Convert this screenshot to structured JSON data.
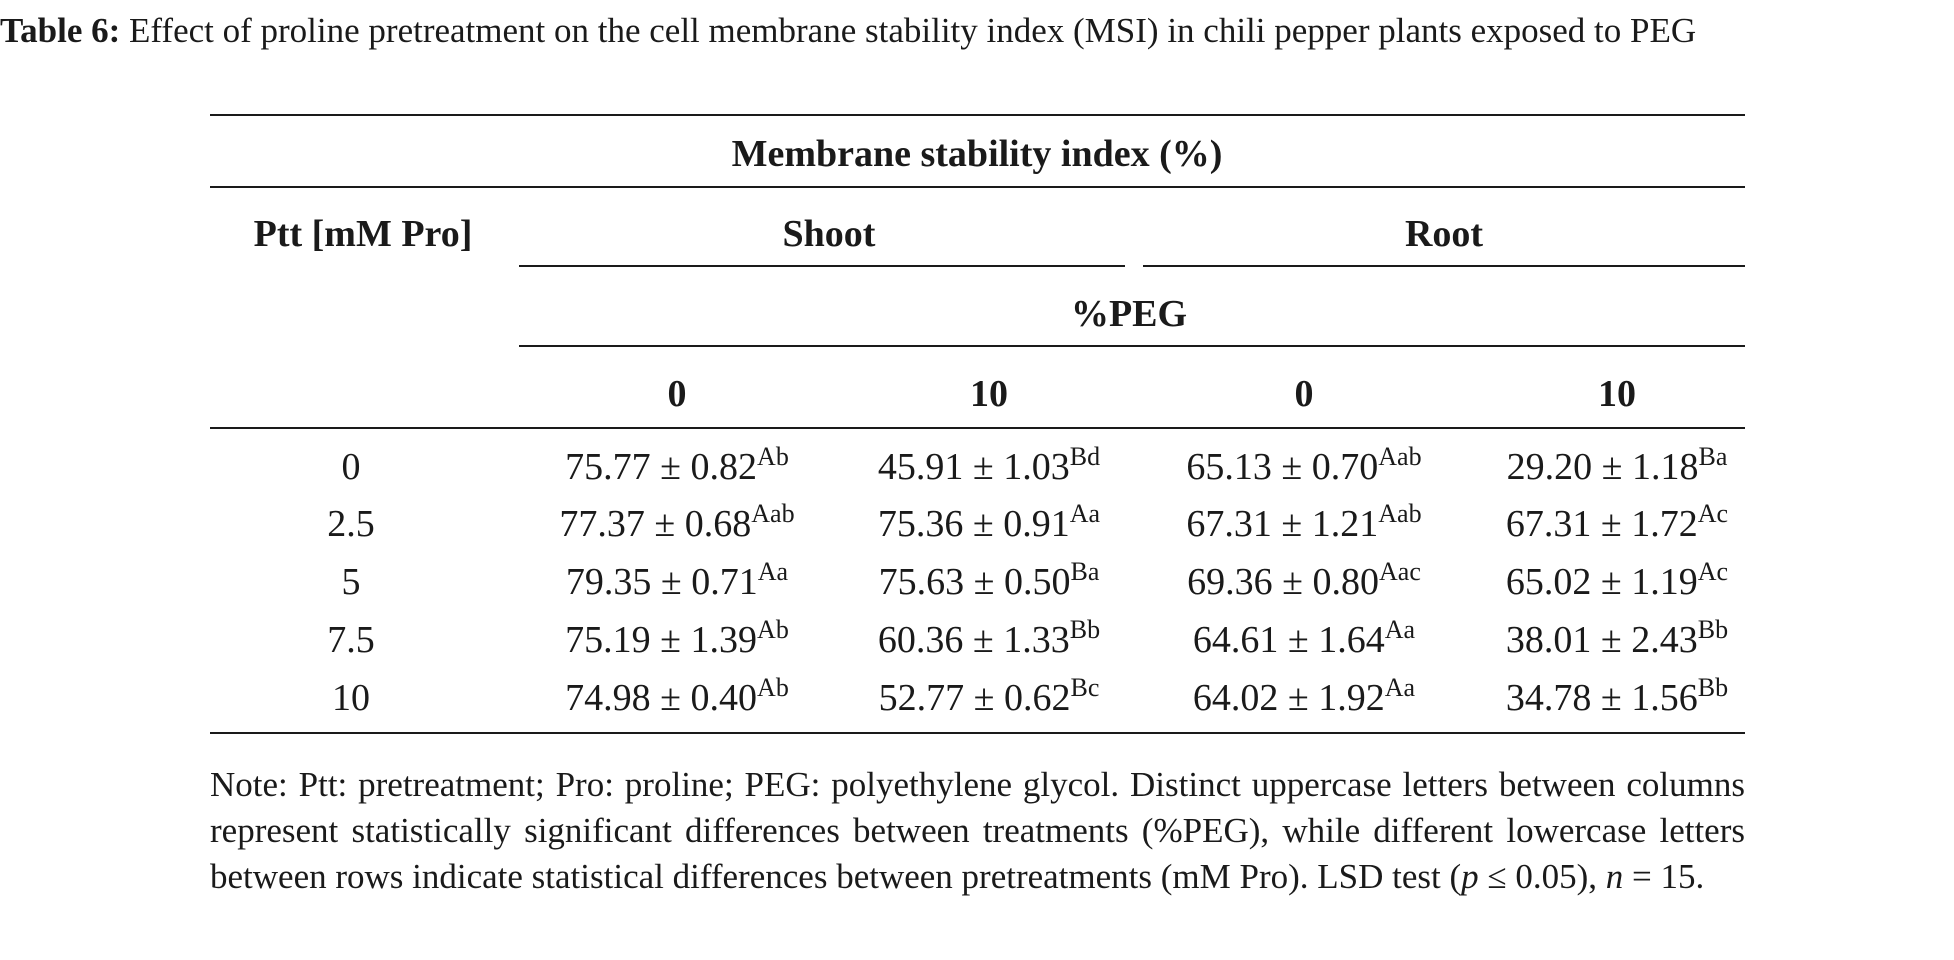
{
  "caption": {
    "label": "Table 6:",
    "text": " Effect of proline pretreatment on the cell membrane stability index (MSI) in chili pepper plants exposed to PEG"
  },
  "table": {
    "title": "Membrane stability index (%)",
    "row_header": "Ptt [mM Pro]",
    "groups": [
      "Shoot",
      "Root"
    ],
    "subheader": "%PEG",
    "levels": [
      "0",
      "10",
      "0",
      "10"
    ],
    "rows": [
      {
        "ptt": "0",
        "cells": [
          {
            "v": "75.77 ± 0.82",
            "s": "Ab"
          },
          {
            "v": "45.91 ± 1.03",
            "s": "Bd"
          },
          {
            "v": "65.13 ± 0.70",
            "s": "Aab"
          },
          {
            "v": "29.20 ± 1.18",
            "s": "Ba"
          }
        ]
      },
      {
        "ptt": "2.5",
        "cells": [
          {
            "v": "77.37 ± 0.68",
            "s": "Aab"
          },
          {
            "v": "75.36 ± 0.91",
            "s": "Aa"
          },
          {
            "v": "67.31 ± 1.21",
            "s": "Aab"
          },
          {
            "v": "67.31 ± 1.72",
            "s": "Ac"
          }
        ]
      },
      {
        "ptt": "5",
        "cells": [
          {
            "v": "79.35 ± 0.71",
            "s": "Aa"
          },
          {
            "v": "75.63 ± 0.50",
            "s": "Ba"
          },
          {
            "v": "69.36 ± 0.80",
            "s": "Aac"
          },
          {
            "v": "65.02 ± 1.19",
            "s": "Ac"
          }
        ]
      },
      {
        "ptt": "7.5",
        "cells": [
          {
            "v": "75.19 ± 1.39",
            "s": "Ab"
          },
          {
            "v": "60.36 ± 1.33",
            "s": "Bb"
          },
          {
            "v": "64.61 ± 1.64",
            "s": "Aa"
          },
          {
            "v": "38.01 ± 2.43",
            "s": "Bb"
          }
        ]
      },
      {
        "ptt": "10",
        "cells": [
          {
            "v": "74.98 ± 0.40",
            "s": "Ab"
          },
          {
            "v": "52.77 ± 0.62",
            "s": "Bc"
          },
          {
            "v": "64.02 ± 1.92",
            "s": "Aa"
          },
          {
            "v": "34.78 ± 1.56",
            "s": "Bb"
          }
        ]
      }
    ]
  },
  "note": {
    "part1": "Note: Ptt: pretreatment; Pro: proline; PEG: polyethylene glycol. Distinct uppercase letters between columns represent statistically significant differences between treatments (%PEG), while different lowercase letters between rows indicate statistical differences between pretreatments (mM Pro). LSD test (",
    "p": "p",
    "part2": " ≤ 0.05), ",
    "n": "n",
    "part3": " = 15."
  }
}
